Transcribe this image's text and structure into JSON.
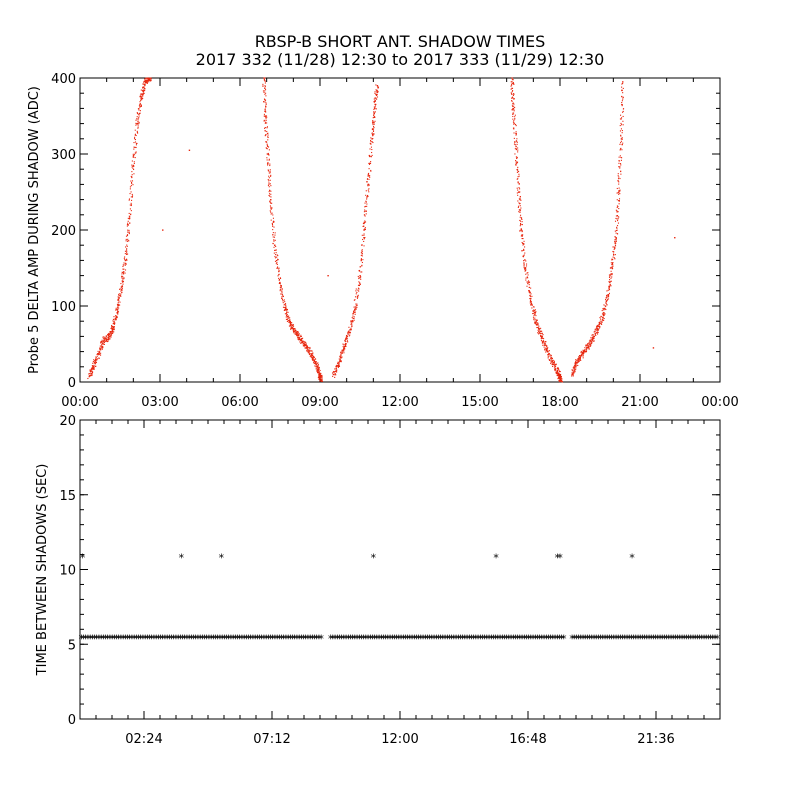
{
  "title": {
    "line1": "RBSP-B SHORT ANT. SHADOW TIMES",
    "line2": "2017 332 (11/28) 12:30 to 2017 333 (11/29) 12:30"
  },
  "colors": {
    "series_top": "#e8270f",
    "series_bottom": "#000000",
    "axes": "#000000"
  },
  "chart_data": [
    {
      "type": "scatter",
      "ylabel": "Probe 5 DELTA AMP DURING SHADOW (ADC)",
      "xlabel": "",
      "xlim_hours": [
        0,
        24
      ],
      "ylim": [
        0,
        400
      ],
      "x_ticks": [
        "00:00",
        "03:00",
        "06:00",
        "09:00",
        "12:00",
        "15:00",
        "18:00",
        "21:00",
        "00:00"
      ],
      "y_ticks": [
        "0",
        "100",
        "200",
        "300",
        "400"
      ],
      "series": [
        {
          "x_hours": [
            0.35,
            0.5,
            0.7,
            0.9,
            1.1,
            1.25,
            1.4,
            1.55,
            1.7,
            1.85,
            2.0,
            2.15,
            2.3,
            2.45,
            2.55,
            2.65,
            6.9,
            6.95,
            7.05,
            7.15,
            7.3,
            7.5,
            7.7,
            7.9,
            8.1,
            8.3,
            8.5,
            8.7,
            8.9,
            9.0,
            9.05,
            9.5,
            9.7,
            9.9,
            10.1,
            10.3,
            10.5,
            10.65,
            10.8,
            10.95,
            11.05,
            11.15,
            16.2,
            16.25,
            16.35,
            16.45,
            16.55,
            16.7,
            16.9,
            17.1,
            17.3,
            17.5,
            17.7,
            17.9,
            18.0,
            18.05,
            18.45,
            18.6,
            18.8,
            19.0,
            19.2,
            19.4,
            19.6,
            19.8,
            19.95,
            20.1,
            20.2,
            20.3,
            20.35,
            3.1,
            4.1,
            9.3,
            22.3,
            21.5
          ],
          "y": [
            8,
            20,
            38,
            55,
            60,
            72,
            95,
            125,
            160,
            215,
            285,
            340,
            375,
            395,
            400,
            400,
            400,
            350,
            300,
            240,
            180,
            130,
            95,
            75,
            65,
            55,
            45,
            35,
            20,
            8,
            2,
            10,
            25,
            45,
            65,
            95,
            140,
            200,
            260,
            320,
            360,
            390,
            400,
            360,
            310,
            250,
            200,
            150,
            110,
            80,
            60,
            42,
            28,
            15,
            6,
            2,
            10,
            25,
            35,
            45,
            55,
            70,
            85,
            115,
            150,
            190,
            250,
            320,
            395,
            200,
            305,
            140,
            190,
            45
          ]
        }
      ]
    },
    {
      "type": "scatter",
      "ylabel": "TIME BETWEEN SHADOWS (SEC)",
      "xlabel": "",
      "xlim_hours": [
        0,
        24
      ],
      "ylim": [
        0,
        20
      ],
      "x_ticks": [
        "02:24",
        "07:12",
        "12:00",
        "16:48",
        "21:36"
      ],
      "x_tick_hours": [
        2.4,
        7.2,
        12.0,
        16.8,
        21.6
      ],
      "y_ticks": [
        "0",
        "5",
        "10",
        "15",
        "20"
      ],
      "series": [
        {
          "marker": "*",
          "band_segments_hours": [
            [
              0.05,
              9.1
            ],
            [
              9.4,
              18.2
            ],
            [
              18.45,
              23.95
            ]
          ],
          "band_value": 5.4,
          "outliers_x_hours": [
            0.1,
            3.8,
            5.3,
            11.0,
            15.6,
            17.9,
            18.0,
            20.7
          ],
          "outliers_y": [
            10.8,
            10.8,
            10.8,
            10.8,
            10.8,
            10.8,
            10.8,
            10.8
          ]
        }
      ]
    }
  ]
}
